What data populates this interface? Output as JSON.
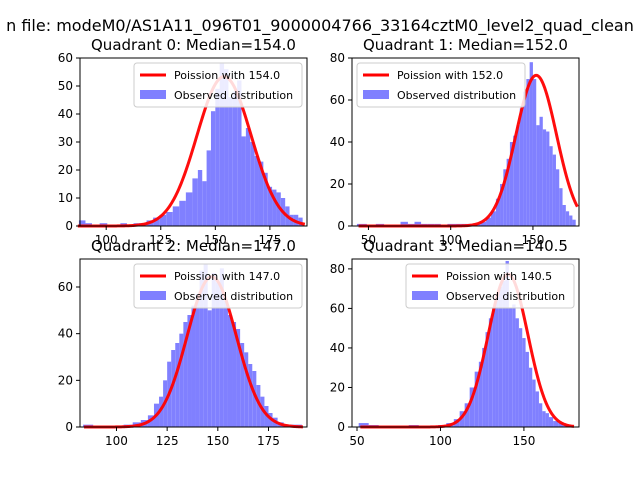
{
  "figure": {
    "suptitle": "n file: modeM0/AS1A11_096T01_9000004766_33164cztM0_level2_quad_clean",
    "colors": {
      "curve": "#ff0000",
      "bars": "#8080ff",
      "axes": "#000000"
    }
  },
  "chart_data": [
    {
      "type": "bar",
      "title": "Quadrant 0: Median=154.0",
      "legend_position": "top-right",
      "legend": [
        "Poission with 154.0",
        "Observed distribution"
      ],
      "xlim": [
        88,
        192
      ],
      "ylim": [
        0,
        60
      ],
      "xticks": [
        100,
        125,
        150,
        175
      ],
      "yticks": [
        0,
        10,
        20,
        30,
        40,
        50,
        60
      ],
      "median": 154.0,
      "bins": [
        [
          89,
          2
        ],
        [
          92,
          1
        ],
        [
          95,
          0
        ],
        [
          99,
          1
        ],
        [
          102,
          0
        ],
        [
          105,
          0
        ],
        [
          108,
          1
        ],
        [
          111,
          0
        ],
        [
          114,
          1
        ],
        [
          117,
          1
        ],
        [
          120,
          2
        ],
        [
          123,
          3
        ],
        [
          126,
          4
        ],
        [
          129,
          5
        ],
        [
          132,
          7
        ],
        [
          135,
          9
        ],
        [
          138,
          12
        ],
        [
          141,
          17
        ],
        [
          143,
          20
        ],
        [
          145,
          16
        ],
        [
          147,
          27
        ],
        [
          149,
          41
        ],
        [
          151,
          49
        ],
        [
          153,
          58
        ],
        [
          155,
          56
        ],
        [
          157,
          46
        ],
        [
          159,
          48
        ],
        [
          161,
          52
        ],
        [
          163,
          32
        ],
        [
          165,
          35
        ],
        [
          167,
          30
        ],
        [
          169,
          25
        ],
        [
          171,
          23
        ],
        [
          173,
          19
        ],
        [
          175,
          14
        ],
        [
          177,
          13
        ],
        [
          179,
          12
        ],
        [
          181,
          10
        ],
        [
          183,
          7
        ],
        [
          185,
          4
        ],
        [
          187,
          4
        ],
        [
          189,
          3
        ]
      ]
    },
    {
      "type": "bar",
      "title": "Quadrant 1: Median=152.0",
      "legend_position": "top-left",
      "legend": [
        "Poission with 152.0",
        "Observed distribution"
      ],
      "xlim": [
        40,
        178
      ],
      "ylim": [
        0,
        80
      ],
      "xticks": [
        50,
        100,
        150
      ],
      "yticks": [
        0,
        20,
        40,
        60,
        80
      ],
      "median": 152.0,
      "bins": [
        [
          46,
          1
        ],
        [
          52,
          0
        ],
        [
          57,
          1
        ],
        [
          62,
          0
        ],
        [
          67,
          0
        ],
        [
          72,
          2
        ],
        [
          76,
          1
        ],
        [
          80,
          2
        ],
        [
          84,
          1
        ],
        [
          88,
          1
        ],
        [
          92,
          1
        ],
        [
          96,
          0
        ],
        [
          100,
          1
        ],
        [
          104,
          1
        ],
        [
          108,
          1
        ],
        [
          112,
          1
        ],
        [
          116,
          1
        ],
        [
          120,
          2
        ],
        [
          123,
          4
        ],
        [
          126,
          7
        ],
        [
          129,
          13
        ],
        [
          131,
          20
        ],
        [
          133,
          27
        ],
        [
          135,
          32
        ],
        [
          137,
          40
        ],
        [
          139,
          43
        ],
        [
          141,
          48
        ],
        [
          143,
          56
        ],
        [
          145,
          64
        ],
        [
          147,
          70
        ],
        [
          149,
          78
        ],
        [
          151,
          70
        ],
        [
          153,
          48
        ],
        [
          155,
          52
        ],
        [
          157,
          46
        ],
        [
          159,
          45
        ],
        [
          161,
          38
        ],
        [
          163,
          34
        ],
        [
          165,
          27
        ],
        [
          167,
          18
        ],
        [
          169,
          10
        ],
        [
          171,
          7
        ],
        [
          173,
          5
        ],
        [
          175,
          3
        ]
      ]
    },
    {
      "type": "bar",
      "title": "Quadrant 2: Median=147.0",
      "legend_position": "top-right",
      "legend": [
        "Poission with 147.0",
        "Observed distribution"
      ],
      "xlim": [
        82,
        194
      ],
      "ylim": [
        0,
        72
      ],
      "xticks": [
        100,
        125,
        150,
        175
      ],
      "yticks": [
        0,
        20,
        40,
        60
      ],
      "median": 147.0,
      "bins": [
        [
          86,
          1
        ],
        [
          91,
          0
        ],
        [
          96,
          0
        ],
        [
          101,
          0
        ],
        [
          106,
          1
        ],
        [
          110,
          2
        ],
        [
          114,
          3
        ],
        [
          117,
          5
        ],
        [
          120,
          10
        ],
        [
          122,
          13
        ],
        [
          124,
          20
        ],
        [
          126,
          28
        ],
        [
          128,
          33
        ],
        [
          130,
          36
        ],
        [
          132,
          40
        ],
        [
          134,
          45
        ],
        [
          136,
          48
        ],
        [
          138,
          52
        ],
        [
          140,
          57
        ],
        [
          142,
          67
        ],
        [
          144,
          70
        ],
        [
          146,
          50
        ],
        [
          148,
          66
        ],
        [
          150,
          62
        ],
        [
          152,
          68
        ],
        [
          154,
          54
        ],
        [
          156,
          48
        ],
        [
          158,
          45
        ],
        [
          160,
          42
        ],
        [
          162,
          36
        ],
        [
          164,
          32
        ],
        [
          166,
          27
        ],
        [
          168,
          24
        ],
        [
          170,
          18
        ],
        [
          172,
          13
        ],
        [
          174,
          9
        ],
        [
          176,
          6
        ],
        [
          178,
          4
        ],
        [
          181,
          2
        ],
        [
          184,
          1
        ],
        [
          187,
          1
        ],
        [
          190,
          1
        ]
      ]
    },
    {
      "type": "bar",
      "title": "Quadrant 3: Median=140.5",
      "legend_position": "top-right",
      "legend": [
        "Poission with 140.5",
        "Observed distribution"
      ],
      "xlim": [
        47,
        183
      ],
      "ylim": [
        0,
        85
      ],
      "xticks": [
        50,
        100,
        150
      ],
      "yticks": [
        0,
        20,
        40,
        60,
        80
      ],
      "median": 140.5,
      "bins": [
        [
          54,
          2
        ],
        [
          60,
          1
        ],
        [
          66,
          0
        ],
        [
          72,
          0
        ],
        [
          78,
          0
        ],
        [
          84,
          1
        ],
        [
          90,
          0
        ],
        [
          96,
          0
        ],
        [
          101,
          1
        ],
        [
          106,
          2
        ],
        [
          110,
          4
        ],
        [
          113,
          8
        ],
        [
          116,
          12
        ],
        [
          119,
          20
        ],
        [
          122,
          28
        ],
        [
          124,
          33
        ],
        [
          126,
          40
        ],
        [
          128,
          48
        ],
        [
          130,
          55
        ],
        [
          132,
          60
        ],
        [
          134,
          66
        ],
        [
          136,
          71
        ],
        [
          138,
          74
        ],
        [
          140,
          84
        ],
        [
          142,
          60
        ],
        [
          144,
          62
        ],
        [
          146,
          55
        ],
        [
          148,
          50
        ],
        [
          150,
          45
        ],
        [
          152,
          38
        ],
        [
          154,
          30
        ],
        [
          156,
          24
        ],
        [
          158,
          18
        ],
        [
          160,
          12
        ],
        [
          162,
          8
        ],
        [
          164,
          7
        ],
        [
          166,
          5
        ],
        [
          169,
          3
        ],
        [
          172,
          2
        ],
        [
          175,
          1
        ],
        [
          178,
          1
        ]
      ]
    }
  ]
}
